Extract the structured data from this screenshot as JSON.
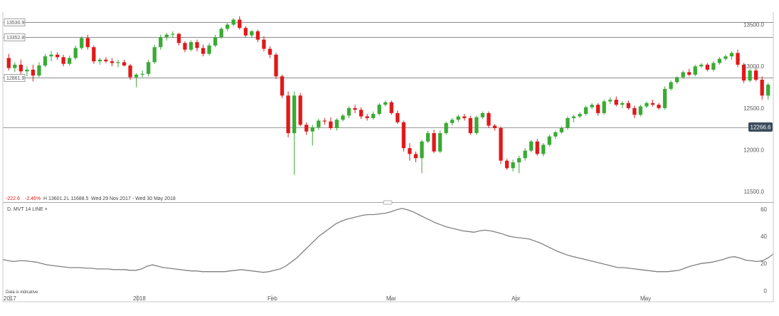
{
  "summary": {
    "change": "-222.6",
    "change_pct": "-2.46%",
    "high": "H 13601.2",
    "low": "L 11688.5",
    "range": "Wed 29 Nov 2017 - Wed 30 May 2018"
  },
  "indicator_label": "D. MVT  14  LINE  ×",
  "disclaimer": "Data is indicative",
  "current_price_label": "12266.6",
  "colors": {
    "up": "#3aaa35",
    "down": "#e0191a",
    "line": "#808080",
    "grid": "#d0d0d0",
    "price_box": "#3a4a5c"
  },
  "chart_data": [
    {
      "type": "candlestick",
      "x_labels": [
        "2017",
        "2018",
        "Feb",
        "Mar",
        "Apr",
        "May"
      ],
      "y_ticks": [
        "13500.0",
        "13000.0",
        "12500.0",
        "12000.0",
        "11500.0"
      ],
      "y_tick_values": [
        13500,
        13000,
        12500,
        12000,
        11500
      ],
      "ylim": [
        11450,
        13650
      ],
      "levels": [
        {
          "value": 13530.9,
          "label": "13530.9"
        },
        {
          "value": 13352.8,
          "label": "13352.8"
        },
        {
          "value": 12861.9,
          "label": "12861.9"
        }
      ],
      "current_price": 12266.6,
      "ohlc": [
        [
          13100,
          13150,
          12950,
          12980
        ],
        [
          12980,
          13050,
          12930,
          13020
        ],
        [
          13020,
          13080,
          12900,
          12940
        ],
        [
          12940,
          13000,
          12880,
          12960
        ],
        [
          12960,
          13020,
          12820,
          12890
        ],
        [
          12890,
          13050,
          12870,
          13010
        ],
        [
          13010,
          13150,
          12990,
          13120
        ],
        [
          13120,
          13180,
          13060,
          13140
        ],
        [
          13140,
          13170,
          13080,
          13110
        ],
        [
          13110,
          13140,
          13000,
          13030
        ],
        [
          13030,
          13130,
          13010,
          13100
        ],
        [
          13100,
          13250,
          13080,
          13220
        ],
        [
          13220,
          13360,
          13200,
          13340
        ],
        [
          13340,
          13380,
          13200,
          13230
        ],
        [
          13230,
          13250,
          13030,
          13060
        ],
        [
          13060,
          13100,
          13020,
          13080
        ],
        [
          13080,
          13110,
          13040,
          13060
        ],
        [
          13060,
          13100,
          13000,
          13040
        ],
        [
          13040,
          13080,
          12990,
          13050
        ],
        [
          13050,
          13080,
          13000,
          13010
        ],
        [
          13010,
          13030,
          12840,
          12870
        ],
        [
          12870,
          12920,
          12750,
          12900
        ],
        [
          12900,
          12950,
          12870,
          12910
        ],
        [
          12910,
          13080,
          12880,
          13050
        ],
        [
          13050,
          13260,
          13030,
          13230
        ],
        [
          13230,
          13380,
          13200,
          13350
        ],
        [
          13350,
          13400,
          13310,
          13380
        ],
        [
          13380,
          13420,
          13340,
          13390
        ],
        [
          13390,
          13400,
          13250,
          13280
        ],
        [
          13280,
          13300,
          13170,
          13200
        ],
        [
          13200,
          13310,
          13180,
          13290
        ],
        [
          13290,
          13320,
          13180,
          13220
        ],
        [
          13220,
          13260,
          13120,
          13150
        ],
        [
          13150,
          13280,
          13130,
          13250
        ],
        [
          13250,
          13380,
          13230,
          13350
        ],
        [
          13350,
          13470,
          13330,
          13450
        ],
        [
          13450,
          13520,
          13420,
          13500
        ],
        [
          13500,
          13580,
          13480,
          13560
        ],
        [
          13560,
          13601,
          13440,
          13460
        ],
        [
          13460,
          13480,
          13350,
          13370
        ],
        [
          13370,
          13440,
          13340,
          13420
        ],
        [
          13420,
          13440,
          13290,
          13320
        ],
        [
          13320,
          13360,
          13180,
          13210
        ],
        [
          13210,
          13240,
          13100,
          13140
        ],
        [
          13140,
          13160,
          12850,
          12880
        ],
        [
          12880,
          12900,
          12620,
          12650
        ],
        [
          12650,
          12700,
          12150,
          12200
        ],
        [
          12200,
          12700,
          11700,
          12650
        ],
        [
          12650,
          12680,
          12280,
          12300
        ],
        [
          12300,
          12330,
          12180,
          12220
        ],
        [
          12220,
          12300,
          12050,
          12270
        ],
        [
          12270,
          12370,
          12240,
          12350
        ],
        [
          12350,
          12380,
          12300,
          12340
        ],
        [
          12340,
          12390,
          12240,
          12260
        ],
        [
          12260,
          12380,
          12230,
          12360
        ],
        [
          12360,
          12430,
          12340,
          12410
        ],
        [
          12410,
          12520,
          12380,
          12500
        ],
        [
          12500,
          12540,
          12440,
          12480
        ],
        [
          12480,
          12510,
          12370,
          12400
        ],
        [
          12400,
          12430,
          12350,
          12380
        ],
        [
          12380,
          12460,
          12360,
          12430
        ],
        [
          12430,
          12560,
          12410,
          12540
        ],
        [
          12540,
          12590,
          12520,
          12570
        ],
        [
          12570,
          12590,
          12420,
          12440
        ],
        [
          12440,
          12470,
          12310,
          12330
        ],
        [
          12330,
          12350,
          11980,
          12020
        ],
        [
          12020,
          12080,
          11870,
          11950
        ],
        [
          11950,
          11980,
          11850,
          11900
        ],
        [
          11900,
          12120,
          11720,
          12100
        ],
        [
          12100,
          12230,
          12080,
          12200
        ],
        [
          12200,
          12240,
          11960,
          11980
        ],
        [
          11980,
          12230,
          11960,
          12200
        ],
        [
          12200,
          12340,
          12180,
          12320
        ],
        [
          12320,
          12380,
          12290,
          12360
        ],
        [
          12360,
          12420,
          12330,
          12400
        ],
        [
          12400,
          12430,
          12350,
          12380
        ],
        [
          12380,
          12410,
          12180,
          12200
        ],
        [
          12200,
          12410,
          12180,
          12390
        ],
        [
          12390,
          12460,
          12370,
          12440
        ],
        [
          12440,
          12460,
          12260,
          12290
        ],
        [
          12290,
          12310,
          12230,
          12260
        ],
        [
          12260,
          12280,
          11830,
          11870
        ],
        [
          11870,
          11890,
          11760,
          11780
        ],
        [
          11780,
          11880,
          11740,
          11850
        ],
        [
          11850,
          11930,
          11720,
          11900
        ],
        [
          11900,
          12020,
          11870,
          11990
        ],
        [
          11990,
          12120,
          11970,
          12100
        ],
        [
          12100,
          12130,
          11930,
          11950
        ],
        [
          11950,
          12080,
          11920,
          12060
        ],
        [
          12060,
          12180,
          12040,
          12160
        ],
        [
          12160,
          12230,
          12130,
          12210
        ],
        [
          12210,
          12280,
          12190,
          12260
        ],
        [
          12260,
          12400,
          12240,
          12380
        ],
        [
          12380,
          12420,
          12330,
          12400
        ],
        [
          12400,
          12450,
          12380,
          12430
        ],
        [
          12430,
          12530,
          12410,
          12510
        ],
        [
          12510,
          12560,
          12490,
          12540
        ],
        [
          12540,
          12560,
          12410,
          12440
        ],
        [
          12440,
          12600,
          12420,
          12580
        ],
        [
          12580,
          12630,
          12550,
          12600
        ],
        [
          12600,
          12640,
          12520,
          12540
        ],
        [
          12540,
          12580,
          12500,
          12560
        ],
        [
          12560,
          12590,
          12480,
          12500
        ],
        [
          12500,
          12530,
          12380,
          12420
        ],
        [
          12420,
          12540,
          12400,
          12520
        ],
        [
          12520,
          12580,
          12500,
          12560
        ],
        [
          12560,
          12600,
          12520,
          12540
        ],
        [
          12540,
          12560,
          12480,
          12500
        ],
        [
          12500,
          12760,
          12480,
          12730
        ],
        [
          12730,
          12830,
          12710,
          12810
        ],
        [
          12810,
          12880,
          12790,
          12870
        ],
        [
          12870,
          12950,
          12850,
          12930
        ],
        [
          12930,
          12970,
          12880,
          12900
        ],
        [
          12900,
          13020,
          12880,
          13000
        ],
        [
          13000,
          13040,
          12980,
          13020
        ],
        [
          13020,
          13040,
          12940,
          12960
        ],
        [
          12960,
          13060,
          12940,
          13040
        ],
        [
          13040,
          13110,
          13020,
          13090
        ],
        [
          13090,
          13140,
          13070,
          13120
        ],
        [
          13120,
          13180,
          13080,
          13160
        ],
        [
          13160,
          13200,
          12990,
          13020
        ],
        [
          13020,
          13040,
          12800,
          12830
        ],
        [
          12830,
          12970,
          12810,
          12950
        ],
        [
          12950,
          12980,
          12820,
          12840
        ],
        [
          12840,
          12880,
          12600,
          12650
        ],
        [
          12650,
          12800,
          12600,
          12780
        ]
      ]
    },
    {
      "type": "line",
      "series_name": "D. MVT 14 LINE",
      "y_ticks": [
        "60",
        "40",
        "20",
        "0"
      ],
      "y_tick_values": [
        60,
        40,
        20,
        0
      ],
      "ylim": [
        -5,
        62
      ],
      "values": [
        23,
        22,
        21.5,
        22,
        22,
        21.5,
        21,
        20,
        19,
        18.5,
        18,
        17.5,
        17,
        17,
        17,
        16.5,
        16.5,
        16,
        16,
        16,
        15.5,
        15.5,
        15.5,
        15,
        15,
        16,
        18,
        19,
        18,
        17,
        16.5,
        16,
        15.5,
        15,
        14.5,
        14.5,
        14,
        14,
        14,
        14,
        14,
        14.5,
        15,
        15.5,
        15,
        14.5,
        14,
        13.5,
        14,
        15,
        16,
        18,
        21,
        24,
        28,
        32,
        36,
        40,
        43,
        46,
        49,
        51,
        52.5,
        53.5,
        54.5,
        55.5,
        56,
        56,
        56.5,
        57,
        58,
        59.5,
        60.5,
        59.5,
        58,
        56,
        54,
        52,
        50,
        48.5,
        47,
        46,
        45,
        44,
        43.5,
        43,
        44,
        44.5,
        44,
        43,
        42,
        40.5,
        39.5,
        39,
        38.5,
        38,
        36.5,
        35,
        33,
        31,
        29,
        27.5,
        26,
        25,
        24,
        23,
        22,
        21,
        20,
        19,
        18,
        17,
        17,
        16.5,
        16,
        15.5,
        15,
        14.5,
        14,
        14,
        14,
        14.5,
        15,
        16.5,
        18,
        19,
        20,
        20.5,
        21,
        22,
        23,
        24.5,
        25,
        24,
        22.5,
        22,
        21.5,
        22,
        24,
        27
      ]
    }
  ]
}
